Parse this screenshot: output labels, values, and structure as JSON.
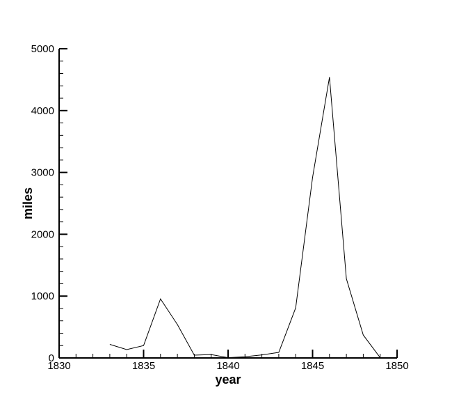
{
  "chart_data": {
    "type": "line",
    "title": "",
    "xlabel": "year",
    "ylabel": "miles",
    "xlim": [
      1830,
      1850
    ],
    "ylim": [
      0,
      5000
    ],
    "grid": false,
    "x_ticks": [
      1830,
      1835,
      1840,
      1845,
      1850
    ],
    "y_ticks": [
      0,
      1000,
      2000,
      3000,
      4000,
      5000
    ],
    "x_tick_labels": [
      "1830",
      "1835",
      "1840",
      "1845",
      "1850"
    ],
    "y_tick_labels": [
      "0",
      "1000",
      "2000",
      "3000",
      "4000",
      "5000"
    ],
    "series": [
      {
        "x": [
          1833,
          1834,
          1835,
          1836,
          1837,
          1838,
          1839,
          1840,
          1841,
          1842,
          1843,
          1844,
          1845,
          1846,
          1847,
          1848,
          1849
        ],
        "y": [
          220,
          135,
          200,
          955,
          540,
          45,
          55,
          5,
          20,
          50,
          90,
          810,
          2920,
          4540,
          1280,
          370,
          5
        ],
        "color": "#000000"
      }
    ]
  }
}
